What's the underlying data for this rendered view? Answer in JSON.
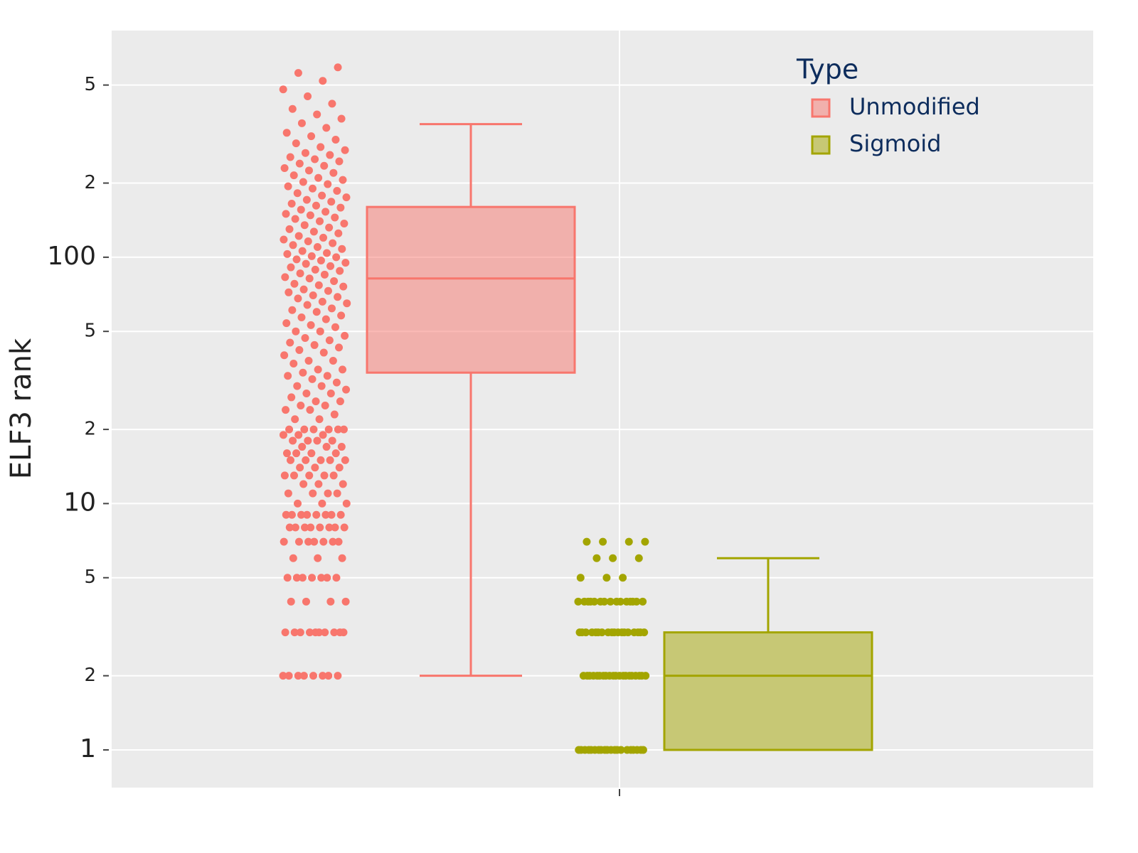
{
  "chart_data": {
    "type": "box",
    "y_label": "ELF3 rank",
    "log_y": true,
    "ylim": [
      0.703,
      832
    ],
    "yticks": [
      1,
      {
        "value": 2,
        "label": "2"
      },
      {
        "value": 5,
        "label": "5"
      },
      10,
      {
        "value": 20,
        "label": "2"
      },
      {
        "value": 50,
        "label": "5"
      },
      100,
      {
        "value": 200,
        "label": "2"
      },
      {
        "value": 500,
        "label": "5"
      }
    ],
    "grid": true,
    "legend_title": "Type",
    "legend_position": "top-right",
    "series": [
      {
        "name": "Unmodified",
        "color": "#F8766D",
        "box": {
          "lower": 2,
          "q1": 34,
          "median": 82,
          "q3": 160,
          "upper": 347
        },
        "points": [
          2,
          2,
          2,
          2,
          2,
          2,
          2,
          2,
          3,
          3,
          3,
          3,
          3,
          3,
          3,
          3,
          3,
          3,
          4,
          4,
          4,
          4,
          5,
          5,
          5,
          5,
          5,
          5,
          5,
          6,
          6,
          6,
          7,
          7,
          7,
          7,
          7,
          7,
          7,
          8,
          8,
          8,
          8,
          8,
          8,
          8,
          8,
          9,
          9,
          9,
          9,
          9,
          9,
          9,
          9,
          10,
          10,
          10,
          11,
          11,
          11,
          11,
          12,
          12,
          12,
          13,
          13,
          13,
          13,
          13,
          14,
          14,
          14,
          15,
          15,
          15,
          15,
          15,
          16,
          16,
          16,
          16,
          17,
          17,
          17,
          18,
          18,
          18,
          18,
          19,
          19,
          19,
          20,
          20,
          20,
          20,
          20,
          20,
          22,
          22,
          23,
          24,
          24,
          25,
          25,
          26,
          26,
          27,
          28,
          28,
          29,
          30,
          30,
          31,
          32,
          33,
          33,
          34,
          35,
          35,
          37,
          38,
          38,
          40,
          41,
          42,
          43,
          44,
          45,
          46,
          47,
          48,
          50,
          50,
          52,
          53,
          54,
          56,
          57,
          58,
          60,
          61,
          62,
          64,
          65,
          66,
          68,
          69,
          70,
          72,
          73,
          74,
          76,
          77,
          78,
          80,
          82,
          83,
          85,
          86,
          88,
          89,
          91,
          92,
          94,
          95,
          97,
          98,
          100,
          101,
          103,
          104,
          106,
          108,
          110,
          112,
          114,
          116,
          118,
          120,
          122,
          125,
          127,
          130,
          132,
          135,
          137,
          140,
          143,
          145,
          148,
          150,
          153,
          156,
          159,
          162,
          165,
          168,
          171,
          175,
          178,
          182,
          186,
          190,
          194,
          198,
          202,
          206,
          210,
          215,
          220,
          225,
          230,
          235,
          240,
          245,
          250,
          255,
          260,
          265,
          272,
          280,
          290,
          300,
          310,
          320,
          335,
          350,
          365,
          380,
          400,
          420,
          450,
          480,
          520,
          560,
          590
        ]
      },
      {
        "name": "Sigmoid",
        "color": "#A3A500",
        "box": {
          "lower": 1,
          "q1": 1,
          "median": 2,
          "q3": 3,
          "upper": 6
        },
        "points": [
          1,
          1,
          1,
          1,
          1,
          1,
          1,
          1,
          1,
          1,
          1,
          1,
          1,
          1,
          1,
          1,
          1,
          1,
          1,
          1,
          2,
          2,
          2,
          2,
          2,
          2,
          2,
          2,
          2,
          2,
          2,
          2,
          2,
          2,
          2,
          2,
          2,
          2,
          2,
          2,
          3,
          3,
          3,
          3,
          3,
          3,
          3,
          3,
          3,
          3,
          3,
          3,
          3,
          3,
          3,
          3,
          3,
          3,
          4,
          4,
          4,
          4,
          4,
          4,
          4,
          4,
          4,
          4,
          4,
          4,
          4,
          4,
          4,
          5,
          5,
          5,
          6,
          6,
          6,
          7,
          7,
          7,
          7
        ]
      }
    ]
  }
}
